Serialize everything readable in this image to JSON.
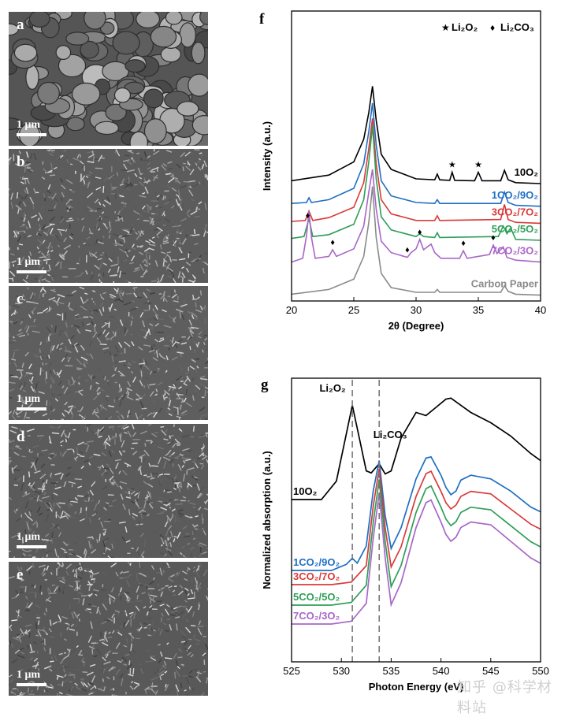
{
  "sem_panels": [
    {
      "letter": "a",
      "scale": "1 μm",
      "texture": "grains",
      "base": "#555555"
    },
    {
      "letter": "b",
      "scale": "1 μm",
      "texture": "flakes",
      "base": "#5c5c5c"
    },
    {
      "letter": "c",
      "scale": "1 μm",
      "texture": "flakes",
      "base": "#5e5e5e"
    },
    {
      "letter": "d",
      "scale": "1 μm",
      "texture": "flakes",
      "base": "#5b5b5b"
    },
    {
      "letter": "e",
      "scale": "1 μm",
      "texture": "flakes",
      "base": "#595959"
    }
  ],
  "watermark": "知乎 @科学材料站",
  "chart_data": [
    {
      "panel": "f",
      "type": "line",
      "xlabel": "2θ (Degree)",
      "ylabel": "Intensity (a.u.)",
      "xlim": [
        20,
        40
      ],
      "xticks": [
        20,
        25,
        30,
        35,
        40
      ],
      "yticks": "none",
      "legend": {
        "position": "top-right",
        "entries": [
          {
            "marker": "★",
            "label": "Li₂O₂"
          },
          {
            "marker": "♦",
            "label": "Li₂CO₃"
          }
        ]
      },
      "series": [
        {
          "name": "10O₂",
          "color": "#000000",
          "offset": 4.2,
          "x": [
            20,
            23,
            25,
            25.8,
            26.2,
            26.5,
            26.8,
            27.2,
            28,
            30,
            31.5,
            31.7,
            31.9,
            32.7,
            32.9,
            33.1,
            34.7,
            35.0,
            35.3,
            36.8,
            37.1,
            37.4,
            38,
            40
          ],
          "y": [
            0.2,
            0.5,
            1.2,
            2.4,
            3.8,
            5.2,
            3.4,
            1.6,
            0.8,
            0.3,
            0.25,
            0.55,
            0.25,
            0.22,
            0.65,
            0.22,
            0.2,
            0.65,
            0.2,
            0.2,
            0.75,
            0.25,
            0.1,
            0.05
          ]
        },
        {
          "name": "1CO₂/9O₂",
          "color": "#1f6fc4",
          "offset": 3.0,
          "x": [
            20,
            21.2,
            21.4,
            21.6,
            23,
            25,
            25.8,
            26.2,
            26.5,
            26.8,
            27.2,
            28,
            30,
            31.5,
            31.7,
            31.9,
            36.8,
            37.1,
            37.4,
            38,
            40
          ],
          "y": [
            0.2,
            0.25,
            0.5,
            0.25,
            0.4,
            1.0,
            2.3,
            4.0,
            5.5,
            3.3,
            1.4,
            0.6,
            0.25,
            0.2,
            0.4,
            0.2,
            0.2,
            0.8,
            0.25,
            0.1,
            0.05
          ]
        },
        {
          "name": "3CO₂/7O₂",
          "color": "#d93a3a",
          "offset": 2.1,
          "x": [
            20,
            21.1,
            21.4,
            21.7,
            23,
            25,
            25.8,
            26.2,
            26.5,
            26.8,
            27.2,
            28,
            30,
            31.5,
            31.7,
            31.9,
            36.8,
            37.1,
            37.4,
            38,
            40
          ],
          "y": [
            0.15,
            0.2,
            0.7,
            0.2,
            0.35,
            0.9,
            2.2,
            4.0,
            5.6,
            3.2,
            1.3,
            0.55,
            0.2,
            0.2,
            0.45,
            0.2,
            0.25,
            1.05,
            0.25,
            0.1,
            0.05
          ]
        },
        {
          "name": "5CO₂/5O₂",
          "color": "#2e9e57",
          "offset": 1.2,
          "x": [
            20,
            21.0,
            21.4,
            21.7,
            23,
            25,
            25.8,
            26.2,
            26.5,
            26.8,
            27.2,
            28,
            30,
            30.3,
            30.6,
            31.5,
            31.7,
            31.9,
            36.6,
            37.0,
            37.3,
            37.6,
            38,
            40
          ],
          "y": [
            0.15,
            0.25,
            1.2,
            0.25,
            0.35,
            0.9,
            2.2,
            4.2,
            6.1,
            3.3,
            1.3,
            0.6,
            0.25,
            0.4,
            0.25,
            0.2,
            0.45,
            0.2,
            0.25,
            0.8,
            0.4,
            0.7,
            0.1,
            0.05
          ]
        },
        {
          "name": "7CO₂/3O₂",
          "color": "#a966c8",
          "offset": 0.0,
          "x": [
            20,
            20.9,
            21.2,
            21.4,
            21.6,
            21.9,
            23,
            23.3,
            23.6,
            25,
            25.8,
            26.2,
            26.5,
            26.8,
            27.2,
            28,
            29.3,
            29.6,
            30.0,
            30.3,
            30.6,
            31.2,
            31.5,
            32.0,
            33.5,
            33.8,
            34.1,
            35.9,
            36.2,
            36.5,
            37.0,
            37.3,
            38,
            40
          ],
          "y": [
            0.1,
            0.3,
            1.5,
            2.8,
            1.4,
            0.3,
            0.4,
            0.75,
            0.4,
            0.8,
            2.0,
            3.8,
            5.0,
            2.9,
            1.2,
            0.6,
            0.35,
            0.6,
            0.8,
            1.3,
            0.75,
            1.05,
            0.6,
            0.3,
            0.3,
            0.7,
            0.3,
            0.5,
            1.0,
            0.55,
            0.9,
            0.35,
            0.2,
            0.1
          ]
        },
        {
          "name": "Carbon Paper",
          "color": "#8a8a8a",
          "offset": -1.7,
          "x": [
            20,
            23,
            25,
            25.8,
            26.2,
            26.5,
            26.8,
            27.2,
            28,
            30,
            31.5,
            31.7,
            31.9,
            36.8,
            37.1,
            37.4,
            38,
            40
          ],
          "y": [
            0.1,
            0.35,
            0.9,
            2.1,
            3.9,
            5.8,
            3.1,
            1.2,
            0.45,
            0.2,
            0.2,
            0.35,
            0.2,
            0.2,
            0.55,
            0.25,
            0.1,
            0.05
          ]
        }
      ],
      "markers": [
        {
          "symbol": "★",
          "x": 32.9,
          "series": "10O₂"
        },
        {
          "symbol": "★",
          "x": 35.0,
          "series": "10O₂"
        },
        {
          "symbol": "♦",
          "x": 21.3,
          "series": "5CO₂/5O₂"
        },
        {
          "symbol": "♦",
          "x": 23.3,
          "series": "7CO₂/3O₂"
        },
        {
          "symbol": "♦",
          "x": 29.3,
          "series": "7CO₂/3O₂"
        },
        {
          "symbol": "♦",
          "x": 30.3,
          "series": "7CO₂/3O₂"
        },
        {
          "symbol": "♦",
          "x": 33.8,
          "series": "7CO₂/3O₂"
        },
        {
          "symbol": "♦",
          "x": 36.2,
          "series": "7CO₂/3O₂"
        }
      ]
    },
    {
      "panel": "g",
      "type": "line",
      "xlabel": "Photon Energy (eV)",
      "ylabel": "Normalized absorption (a.u.)",
      "xlim": [
        525,
        550
      ],
      "xticks": [
        525,
        530,
        535,
        540,
        545,
        550
      ],
      "yticks": "none",
      "annotations": [
        {
          "label": "Li₂O₂",
          "x": 531.1
        },
        {
          "label": "Li₂CO₃",
          "x": 533.8
        }
      ],
      "series": [
        {
          "name": "10O₂",
          "color": "#000000",
          "x": [
            525,
            528,
            529.5,
            530.3,
            531.1,
            531.8,
            532.5,
            533.0,
            533.8,
            534.4,
            535.0,
            536,
            537.5,
            538.5,
            539.5,
            540.5,
            541.0,
            542,
            543,
            545,
            547,
            549,
            550
          ],
          "y": [
            0.0,
            0.0,
            0.18,
            0.55,
            0.92,
            0.6,
            0.28,
            0.26,
            0.35,
            0.25,
            0.28,
            0.6,
            0.85,
            0.82,
            0.9,
            0.98,
            0.99,
            0.92,
            0.85,
            0.75,
            0.62,
            0.45,
            0.38
          ]
        },
        {
          "name": "1CO₂/9O₂",
          "color": "#1f6fc4",
          "x": [
            525,
            529,
            530.5,
            531.1,
            531.6,
            532.5,
            533.2,
            533.8,
            534.4,
            535.0,
            536.0,
            537.5,
            538.5,
            539.0,
            540,
            540.5,
            541.0,
            541.5,
            542,
            543,
            545,
            547,
            549,
            550
          ],
          "y": [
            0.0,
            0.0,
            0.05,
            0.1,
            0.06,
            0.2,
            0.65,
            0.9,
            0.45,
            0.18,
            0.35,
            0.75,
            0.92,
            0.93,
            0.78,
            0.68,
            0.62,
            0.65,
            0.74,
            0.78,
            0.75,
            0.65,
            0.52,
            0.48
          ]
        },
        {
          "name": "3CO₂/7O₂",
          "color": "#d93a3a",
          "x": [
            525,
            529,
            531,
            532.5,
            533.2,
            533.8,
            534.4,
            535.0,
            536.0,
            537.5,
            538.5,
            539.0,
            540,
            540.5,
            541.0,
            541.5,
            542,
            543,
            545,
            547,
            549,
            550
          ],
          "y": [
            0.0,
            0.0,
            0.02,
            0.15,
            0.62,
            0.92,
            0.45,
            0.14,
            0.3,
            0.7,
            0.88,
            0.9,
            0.74,
            0.65,
            0.6,
            0.63,
            0.7,
            0.74,
            0.72,
            0.6,
            0.48,
            0.44
          ]
        },
        {
          "name": "5CO₂/5O₂",
          "color": "#2e9e57",
          "x": [
            525,
            529,
            531,
            532.5,
            533.2,
            533.8,
            534.4,
            535.0,
            536.0,
            537.5,
            538.5,
            539.0,
            540,
            540.5,
            541.0,
            541.5,
            542,
            543,
            545,
            547,
            549,
            550
          ],
          "y": [
            0.0,
            0.0,
            0.02,
            0.15,
            0.62,
            0.95,
            0.48,
            0.14,
            0.3,
            0.7,
            0.88,
            0.9,
            0.74,
            0.65,
            0.6,
            0.63,
            0.7,
            0.74,
            0.72,
            0.6,
            0.48,
            0.44
          ]
        },
        {
          "name": "7CO₂/3O₂",
          "color": "#a966c8",
          "x": [
            525,
            529,
            531,
            532.5,
            533.2,
            533.8,
            534.4,
            535.0,
            536.0,
            537.5,
            538.5,
            539.0,
            540,
            540.5,
            541.0,
            541.5,
            542,
            543,
            545,
            547,
            549,
            550
          ],
          "y": [
            0.0,
            0.0,
            0.02,
            0.15,
            0.62,
            0.95,
            0.48,
            0.14,
            0.3,
            0.7,
            0.88,
            0.9,
            0.74,
            0.65,
            0.6,
            0.63,
            0.7,
            0.74,
            0.72,
            0.6,
            0.48,
            0.44
          ]
        }
      ]
    }
  ]
}
